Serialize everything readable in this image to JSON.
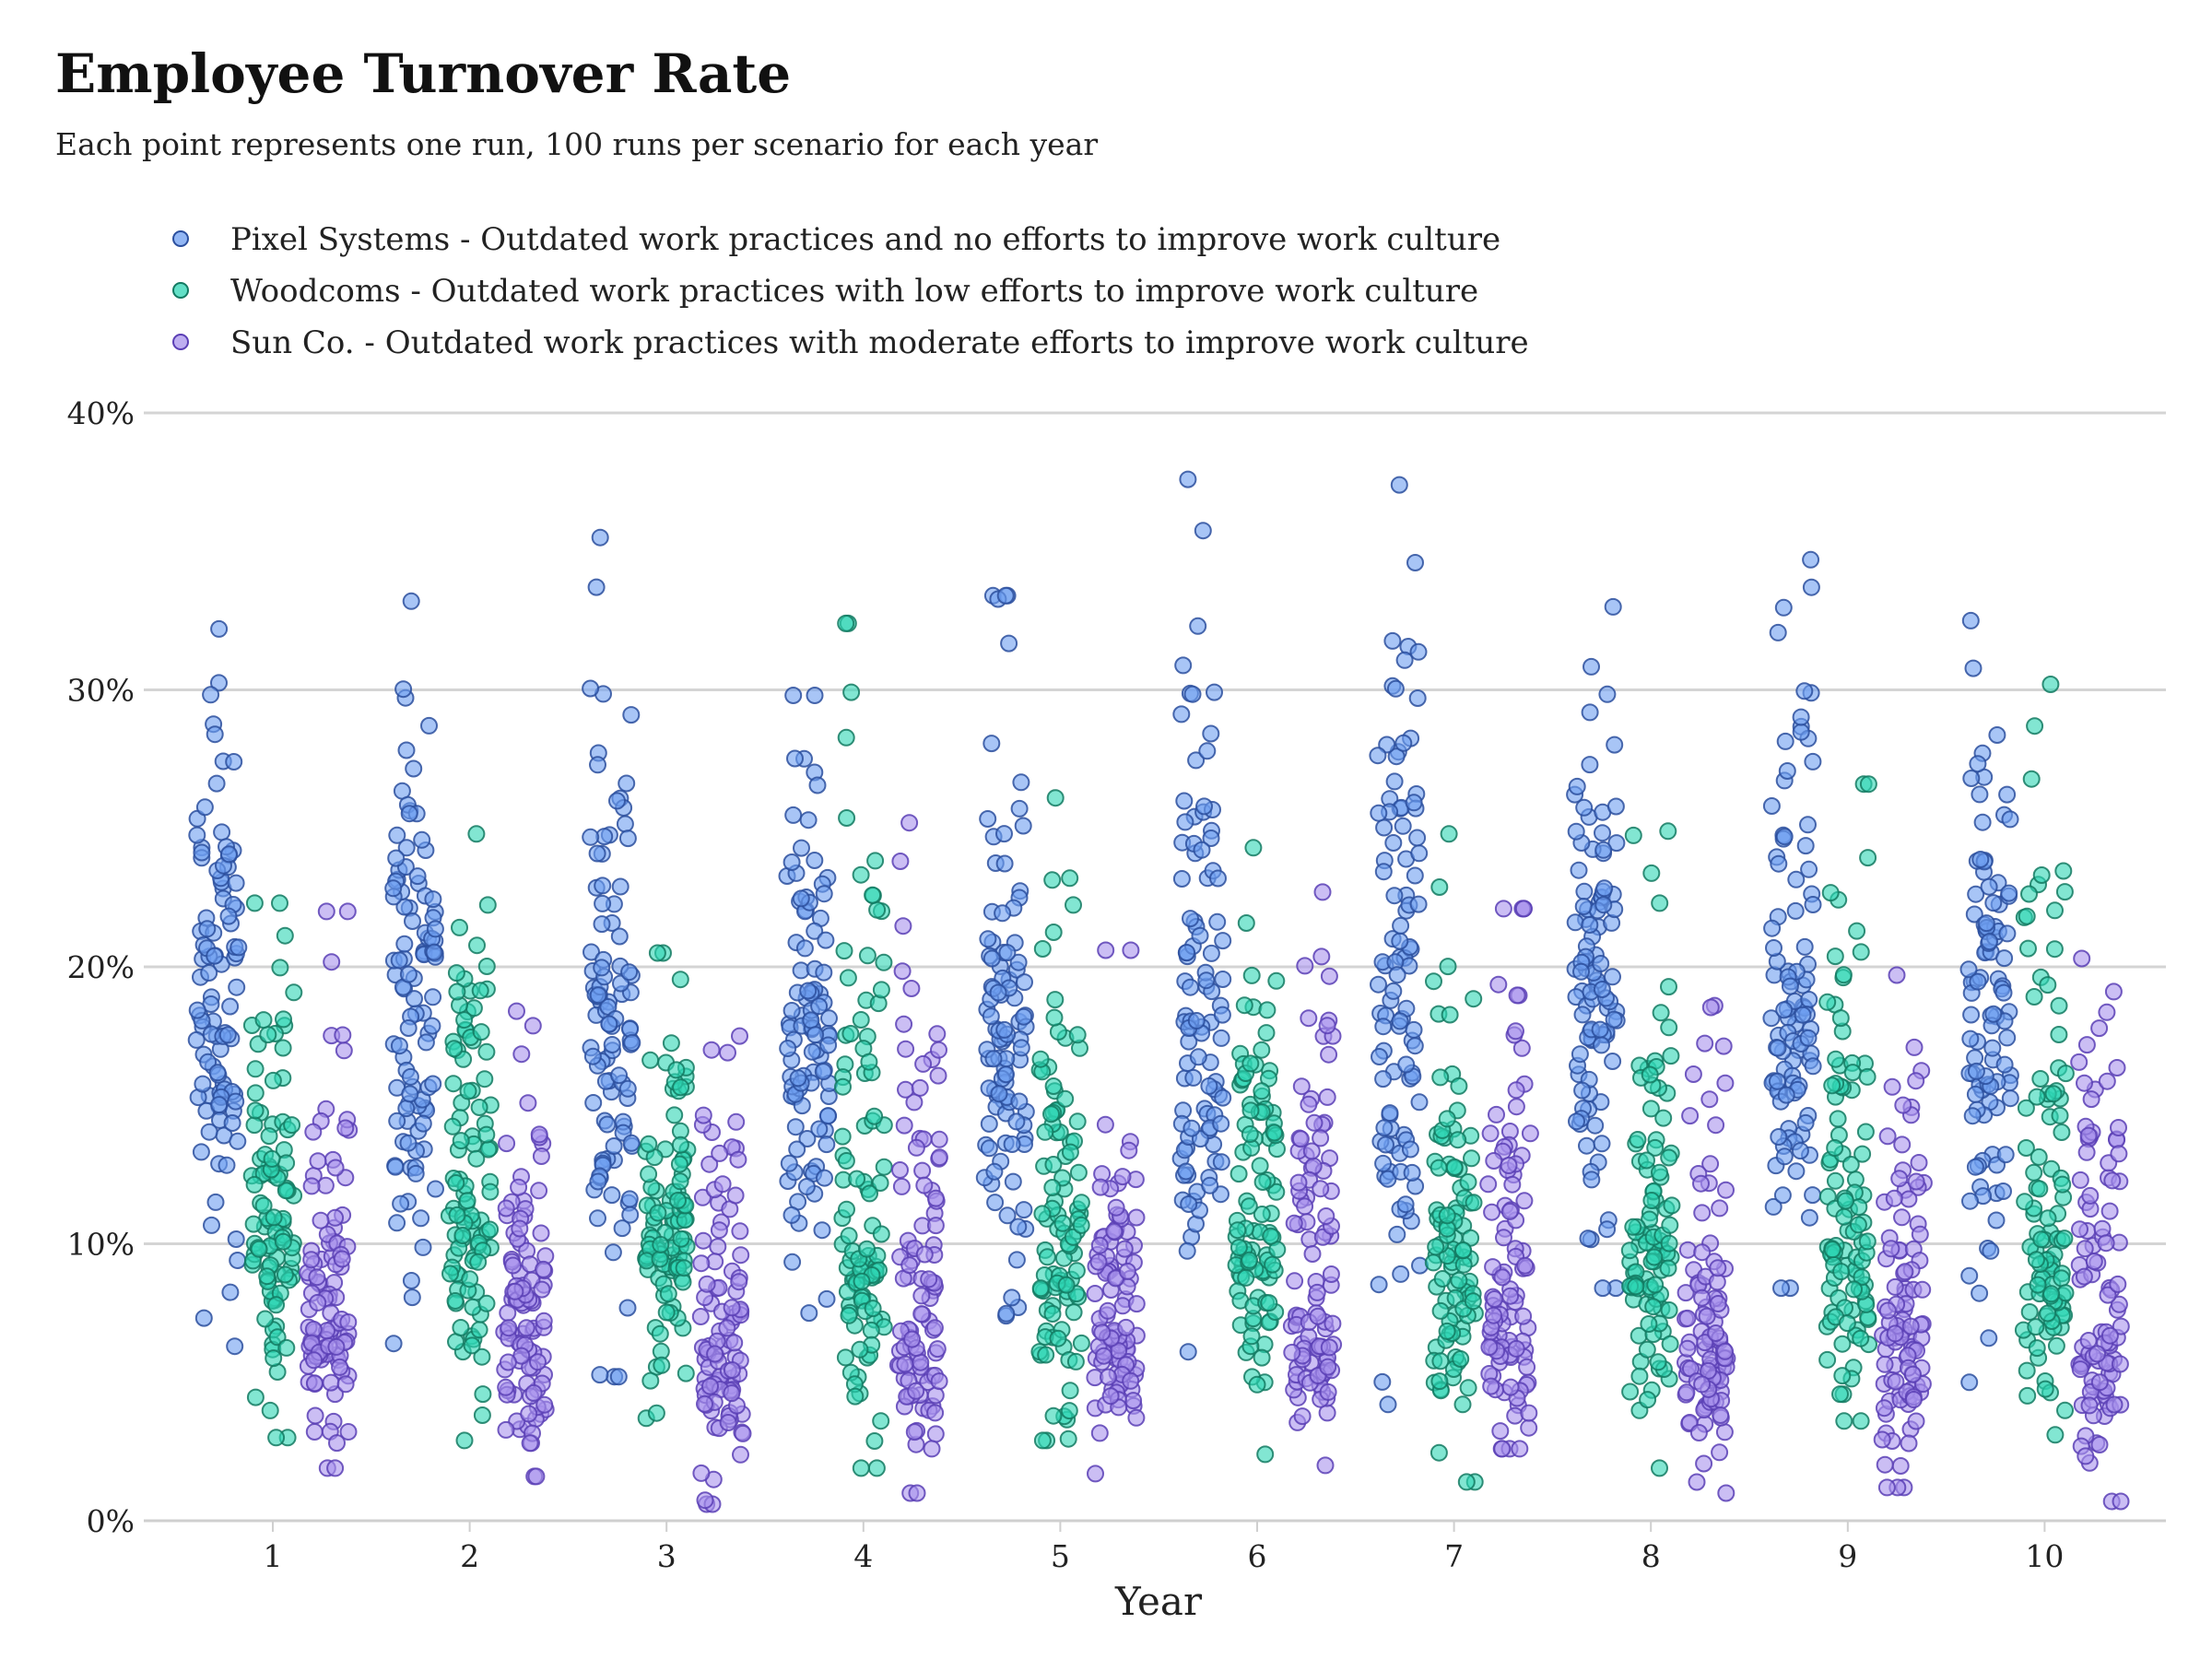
{
  "chart_data": {
    "type": "scatter",
    "title": "Employee Turnover Rate",
    "subtitle": "Each point represents one run, 100 runs per scenario for each year",
    "xlabel": "Year",
    "ylabel": "",
    "x_categories": [
      "1",
      "2",
      "3",
      "4",
      "5",
      "6",
      "7",
      "8",
      "9",
      "10"
    ],
    "ylim": [
      0,
      40
    ],
    "y_ticks": [
      0,
      10,
      20,
      30,
      40
    ],
    "y_tick_labels": [
      "0%",
      "10%",
      "20%",
      "30%",
      "40%"
    ],
    "grid": "horizontal",
    "legend_position": "top-left",
    "runs_per_scenario": 100,
    "series": [
      {
        "name": "Pixel Systems - Outdated work practices and no efforts to improve work culture",
        "color": "#6e9ef0",
        "edge_color": "#2b4f9e",
        "stats_by_year": [
          {
            "year": 1,
            "min": 6.3,
            "median": 18.5,
            "max": 32.2
          },
          {
            "year": 2,
            "min": 6.4,
            "median": 18.0,
            "max": 33.2
          },
          {
            "year": 3,
            "min": 5.2,
            "median": 19.0,
            "max": 35.5
          },
          {
            "year": 4,
            "min": 7.5,
            "median": 18.5,
            "max": 29.8
          },
          {
            "year": 5,
            "min": 7.4,
            "median": 17.5,
            "max": 33.4
          },
          {
            "year": 6,
            "min": 6.1,
            "median": 18.0,
            "max": 37.6
          },
          {
            "year": 7,
            "min": 4.2,
            "median": 18.5,
            "max": 37.4
          },
          {
            "year": 8,
            "min": 8.4,
            "median": 18.5,
            "max": 33.0
          },
          {
            "year": 9,
            "min": 8.4,
            "median": 19.0,
            "max": 34.7
          },
          {
            "year": 10,
            "min": 5.0,
            "median": 18.0,
            "max": 32.5
          }
        ]
      },
      {
        "name": "Woodcoms - Outdated work practices with low efforts to improve work culture",
        "color": "#2fd6b4",
        "edge_color": "#137a62",
        "stats_by_year": [
          {
            "year": 1,
            "min": 3.0,
            "median": 11.0,
            "max": 22.3
          },
          {
            "year": 2,
            "min": 2.9,
            "median": 11.0,
            "max": 24.8
          },
          {
            "year": 3,
            "min": 3.7,
            "median": 10.5,
            "max": 20.5
          },
          {
            "year": 4,
            "min": 1.9,
            "median": 10.0,
            "max": 32.4
          },
          {
            "year": 5,
            "min": 2.9,
            "median": 10.0,
            "max": 26.1
          },
          {
            "year": 6,
            "min": 2.4,
            "median": 10.5,
            "max": 24.3
          },
          {
            "year": 7,
            "min": 1.4,
            "median": 10.0,
            "max": 24.8
          },
          {
            "year": 8,
            "min": 1.9,
            "median": 10.0,
            "max": 24.9
          },
          {
            "year": 9,
            "min": 3.6,
            "median": 10.0,
            "max": 26.6
          },
          {
            "year": 10,
            "min": 3.1,
            "median": 10.5,
            "max": 30.2
          }
        ]
      },
      {
        "name": "Sun Co. - Outdated work practices with moderate efforts to improve work culture",
        "color": "#a893ec",
        "edge_color": "#5b3fb5",
        "stats_by_year": [
          {
            "year": 1,
            "min": 1.9,
            "median": 7.0,
            "max": 22.0
          },
          {
            "year": 2,
            "min": 1.6,
            "median": 7.0,
            "max": 18.4
          },
          {
            "year": 3,
            "min": 0.6,
            "median": 6.5,
            "max": 17.5
          },
          {
            "year": 4,
            "min": 1.0,
            "median": 7.0,
            "max": 25.2
          },
          {
            "year": 5,
            "min": 1.7,
            "median": 7.0,
            "max": 20.6
          },
          {
            "year": 6,
            "min": 2.0,
            "median": 7.5,
            "max": 22.7
          },
          {
            "year": 7,
            "min": 2.6,
            "median": 7.5,
            "max": 22.1
          },
          {
            "year": 8,
            "min": 1.0,
            "median": 6.5,
            "max": 18.6
          },
          {
            "year": 9,
            "min": 1.2,
            "median": 7.0,
            "max": 19.7
          },
          {
            "year": 10,
            "min": 0.7,
            "median": 6.5,
            "max": 20.3
          }
        ]
      }
    ]
  }
}
